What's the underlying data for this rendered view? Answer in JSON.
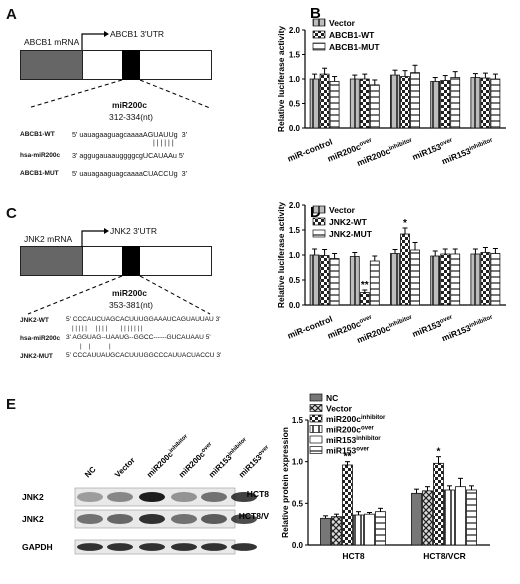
{
  "panels": {
    "A": {
      "letter": "A",
      "mrna_label": "ABCB1 mRNA",
      "utr_label": "ABCB1 3'UTR",
      "mir_name": "miR200c",
      "site": "312-334(nt)",
      "rows": [
        {
          "label": "ABCB1-WT",
          "seq": "5' uauagaaguagcaaaaAGUAUUg  3'"
        },
        {
          "label": "hsa-miR200c",
          "seq": "3' aggugauaauggggcgUCAUAAu 5'"
        },
        {
          "label": "ABCB1-MUT",
          "seq": "5' uauagaaguagcaaaaCUACCUg  3'"
        }
      ],
      "pairs": "| | | | | |"
    },
    "C": {
      "letter": "C",
      "mrna_label": "JNK2 mRNA",
      "utr_label": "JNK2 3'UTR",
      "mir_name": "miR200c",
      "site": "353-381(nt)",
      "rows": [
        {
          "label": "JNK2-WT",
          "seq": "5' CCCAUCUAGCACUUUGGAAAUCAGUAUUAU 3'"
        },
        {
          "label": "hsa-miR200c",
          "seq": "3' AGGUAG--UAAUG--GGCC------GUCAUAAU 5'"
        },
        {
          "label": "JNK2-MUT",
          "seq": "5' CCCAUUAUGCACUUUGGCCCAUUACUACCU 3'"
        }
      ],
      "pairs_top": "| | | | |     | | | |        | | | | | | |",
      "pairs_bot": "|    |           |"
    },
    "E": {
      "letter": "E",
      "blot_lanes": [
        "NC",
        "Vector",
        "miR200c<sup>inhibitor</sup>",
        "miR200c<sup>over</sup>",
        "miR153<sup>inhibitor</sup>",
        "miR153<sup>over</sup>"
      ],
      "blot_rows": [
        {
          "left": "JNK2",
          "right": "HCT8"
        },
        {
          "left": "JNK2",
          "right": "HCT8/V"
        },
        {
          "left": "GAPDH",
          "right": ""
        }
      ]
    }
  },
  "chart_data": [
    {
      "panel": "B",
      "type": "bar",
      "ylabel": "Relative luciferase activity",
      "ylim": [
        0,
        2.0
      ],
      "yticks": [
        "0.0",
        "0.5",
        "1.0",
        "1.5",
        "2.0"
      ],
      "categories": [
        "miR-control",
        "miR200c<sup>over</sup>",
        "miR200c<sup>inhibitor</sup>",
        "miR153<sup>over</sup>",
        "miR153<sup>inhibitor</sup>"
      ],
      "series": [
        {
          "name": "Vector",
          "values": [
            1.0,
            1.0,
            1.08,
            0.95,
            1.03
          ],
          "errors": [
            0.1,
            0.08,
            0.1,
            0.08,
            0.08
          ]
        },
        {
          "name": "ABCB1-WT",
          "values": [
            1.1,
            1.0,
            1.05,
            0.97,
            1.02
          ],
          "errors": [
            0.12,
            0.1,
            0.12,
            0.1,
            0.1
          ]
        },
        {
          "name": "ABCB1-MUT",
          "values": [
            0.95,
            0.88,
            1.13,
            1.03,
            1.0
          ],
          "errors": [
            0.1,
            0.1,
            0.15,
            0.12,
            0.1
          ]
        }
      ],
      "annotations": []
    },
    {
      "panel": "D",
      "type": "bar",
      "ylabel": "Relative luciferase activity",
      "ylim": [
        0,
        2.0
      ],
      "yticks": [
        "0.0",
        "0.5",
        "1.0",
        "1.5",
        "2.0"
      ],
      "categories": [
        "miR-control",
        "miR200c<sup>over</sup>",
        "miR200c<sup>inhibitor</sup>",
        "miR153<sup>over</sup>",
        "miR153<sup>inhibitor</sup>"
      ],
      "series": [
        {
          "name": "Vector",
          "values": [
            1.0,
            0.97,
            1.03,
            0.98,
            1.02
          ],
          "errors": [
            0.12,
            0.08,
            0.08,
            0.1,
            0.1
          ]
        },
        {
          "name": "JNK2-WT",
          "values": [
            0.99,
            0.25,
            1.42,
            1.02,
            1.05
          ],
          "errors": [
            0.12,
            0.05,
            0.12,
            0.1,
            0.1
          ]
        },
        {
          "name": "JNK2-MUT",
          "values": [
            0.93,
            0.88,
            1.1,
            1.02,
            1.03
          ],
          "errors": [
            0.1,
            0.1,
            0.15,
            0.1,
            0.1
          ]
        }
      ],
      "annotations": [
        {
          "text": "**",
          "category": 1,
          "series": 1
        },
        {
          "text": "*",
          "category": 2,
          "series": 1
        }
      ]
    },
    {
      "panel": "E",
      "type": "bar",
      "ylabel": "Relative protein expression",
      "ylim": [
        0,
        1.5
      ],
      "yticks": [
        "0.0",
        "0.5",
        "1.0",
        "1.5"
      ],
      "categories": [
        "HCT8",
        "HCT8/VCR"
      ],
      "series": [
        {
          "name": "NC",
          "values": [
            0.32,
            0.62
          ],
          "errors": [
            0.03,
            0.05
          ]
        },
        {
          "name": "Vector",
          "values": [
            0.34,
            0.65
          ],
          "errors": [
            0.03,
            0.05
          ]
        },
        {
          "name": "miR200c<sup>inhibitor</sup>",
          "values": [
            0.96,
            0.98
          ],
          "errors": [
            0.04,
            0.08
          ]
        },
        {
          "name": "miR200c<sup>over</sup>",
          "values": [
            0.36,
            0.66
          ],
          "errors": [
            0.04,
            0.05
          ]
        },
        {
          "name": "miR153<sup>inhibitor</sup>",
          "values": [
            0.37,
            0.7
          ],
          "errors": [
            0.02,
            0.1
          ]
        },
        {
          "name": "miR153<sup>over</sup>",
          "values": [
            0.4,
            0.66
          ],
          "errors": [
            0.04,
            0.05
          ]
        }
      ],
      "annotations": [
        {
          "text": "**",
          "category": 0,
          "series": 2
        },
        {
          "text": "*",
          "category": 1,
          "series": 2
        }
      ]
    }
  ]
}
